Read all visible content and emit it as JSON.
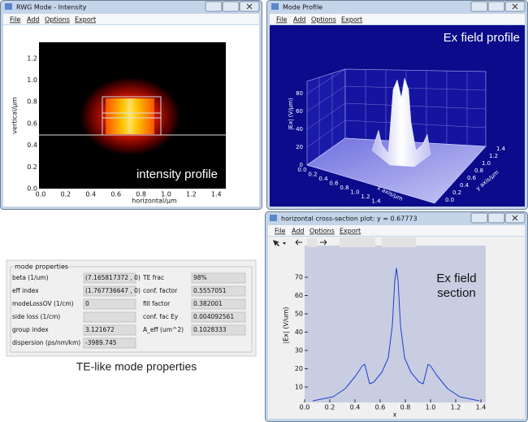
{
  "windows": [
    {
      "title": "RWG Mode - Intensity",
      "menu": [
        "File",
        "Add",
        "Options",
        "Export"
      ],
      "plot": {
        "xticks": [
          "0.0",
          "0.2",
          "0.4",
          "0.6",
          "0.8",
          "1.0",
          "1.2",
          "1.4"
        ],
        "yticks": [
          "0.0",
          "0.2",
          "0.4",
          "0.6",
          "0.8",
          "1.0",
          "1.2"
        ],
        "xlabel": "horizontal/μm",
        "ylabel": "vertical/μm",
        "annotation": "intensity profile"
      }
    },
    {
      "title": "Mode Profile",
      "menu": [
        "File",
        "Add",
        "Options",
        "Export"
      ],
      "plot": {
        "annotation": "Ex field profile",
        "zticks": [
          "0",
          "20",
          "40",
          "60",
          "80"
        ],
        "xticks": [
          "0.0",
          "0.2",
          "0.4",
          "0.6",
          "0.8",
          "1.0",
          "1.2",
          "1.4"
        ],
        "yticks": [
          "0.0",
          "0.2",
          "0.4",
          "0.6",
          "0.8",
          "1.0",
          "1.2",
          "1.4"
        ],
        "zlabel": "|Ex| (V/μm)",
        "xlabel": "x axis/μm",
        "ylabel": "y axis/μm"
      }
    },
    {
      "title": "horizontal cross-section plot: y = 0.67773",
      "menu": [
        "File",
        "Add",
        "Options",
        "Export"
      ],
      "plot": {
        "xticks": [
          "0.0",
          "0.2",
          "0.4",
          "0.6",
          "0.8",
          "1.0",
          "1.2",
          "1.4"
        ],
        "yticks": [
          "10",
          "20",
          "30",
          "40",
          "50",
          "60",
          "70"
        ],
        "xlabel": "x",
        "ylabel": "|Ex| (V/um)",
        "annotation": [
          "Ex field",
          "section"
        ]
      }
    }
  ],
  "properties": {
    "group_title": "mode properties",
    "left": [
      {
        "label": "beta (1/um)",
        "value": "(7.165817372 , 0)"
      },
      {
        "label": "eff index",
        "value": "(1.767736647 , 0)"
      },
      {
        "label": "modeLossOV (1/cm)",
        "value": "0"
      },
      {
        "label": "side loss (1/cm)"
      },
      {
        "label": "group index",
        "value": "3.121672"
      },
      {
        "label": "dispersion (ps/nm/km)",
        "value": "-3989.745"
      }
    ],
    "right": [
      {
        "label": "TE frac",
        "value": "98%"
      },
      {
        "label": "conf. factor",
        "value": "0.5557051"
      },
      {
        "label": "fill factor",
        "value": "0.382001"
      },
      {
        "label": "conf. fac Ey",
        "value": "0.004092561"
      },
      {
        "label": "A_eff (um^2)",
        "value": "0.1028333"
      }
    ]
  },
  "caption": "TE-like mode properties"
}
